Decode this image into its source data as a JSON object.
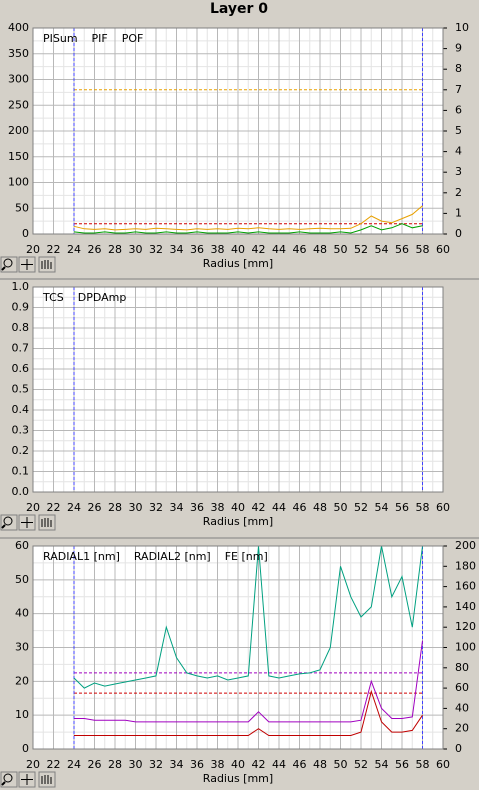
{
  "title": "Layer 0",
  "chart_data": [
    {
      "type": "line",
      "x_label": "Radius [mm]",
      "x": [
        24,
        25,
        26,
        27,
        28,
        29,
        30,
        31,
        32,
        33,
        34,
        35,
        36,
        37,
        38,
        39,
        40,
        41,
        42,
        43,
        44,
        45,
        46,
        47,
        48,
        49,
        50,
        51,
        52,
        53,
        54,
        55,
        56,
        57,
        58
      ],
      "xlim": [
        20,
        60
      ],
      "xticks": [
        20,
        22,
        24,
        26,
        28,
        30,
        32,
        34,
        36,
        38,
        40,
        42,
        44,
        46,
        48,
        50,
        52,
        54,
        56,
        58,
        60
      ],
      "ylim": [
        0,
        400
      ],
      "yticks": [
        0,
        50,
        100,
        150,
        200,
        250,
        300,
        350,
        400
      ],
      "y2lim": [
        0,
        10
      ],
      "y2ticks": [
        0,
        1,
        2,
        3,
        4,
        5,
        6,
        7,
        8,
        9,
        10
      ],
      "grid": true,
      "vlines": [
        24,
        58
      ],
      "vline_color": "#4040ff",
      "hlines": [
        {
          "value": 280,
          "color": "#e8a000"
        },
        {
          "value": 20,
          "color": "#d00000"
        }
      ],
      "series": [
        {
          "name": "PISum",
          "color": "#e8a000",
          "values": [
            15,
            10,
            9,
            10,
            8,
            9,
            10,
            9,
            11,
            10,
            9,
            8,
            10,
            9,
            10,
            9,
            11,
            10,
            12,
            10,
            9,
            10,
            9,
            10,
            11,
            10,
            10,
            11,
            20,
            35,
            25,
            22,
            30,
            38,
            55
          ]
        },
        {
          "name": "PIF",
          "color": "#00a000",
          "axis": "y2",
          "values": [
            0.1,
            0.05,
            0.05,
            0.1,
            0.05,
            0.05,
            0.1,
            0.05,
            0.05,
            0.1,
            0.05,
            0.05,
            0.1,
            0.05,
            0.05,
            0.05,
            0.1,
            0.05,
            0.1,
            0.05,
            0.05,
            0.05,
            0.1,
            0.05,
            0.05,
            0.05,
            0.1,
            0.05,
            0.2,
            0.4,
            0.2,
            0.3,
            0.5,
            0.3,
            0.4
          ]
        },
        {
          "name": "POF",
          "color": "#c00000",
          "axis": "y2",
          "values": [
            0,
            0,
            0,
            0,
            0,
            0,
            0,
            0,
            0,
            0,
            0,
            0,
            0,
            0,
            0,
            0,
            0,
            0,
            0,
            0,
            0,
            0,
            0,
            0,
            0,
            0,
            0,
            0,
            0,
            0,
            0,
            0,
            0,
            0,
            0
          ]
        }
      ]
    },
    {
      "type": "line",
      "x_label": "Radius [mm]",
      "xlim": [
        20,
        60
      ],
      "xticks": [
        20,
        22,
        24,
        26,
        28,
        30,
        32,
        34,
        36,
        38,
        40,
        42,
        44,
        46,
        48,
        50,
        52,
        54,
        56,
        58,
        60
      ],
      "ylim": [
        0,
        1
      ],
      "yticks": [
        {
          "value": 0,
          "label": "0.0"
        },
        0.1,
        0.2,
        0.3,
        0.4,
        0.5,
        0.6,
        0.7,
        0.8,
        0.9,
        {
          "value": 1,
          "label": "1.0"
        }
      ],
      "grid": true,
      "vlines": [
        24,
        58
      ],
      "vline_color": "#4040ff",
      "series": [
        {
          "name": "TCS",
          "color": "#006000"
        },
        {
          "name": "DPDAmp",
          "color": "#c00000"
        }
      ]
    },
    {
      "type": "line",
      "x_label": "Radius [mm]",
      "x": [
        24,
        25,
        26,
        27,
        28,
        29,
        30,
        31,
        32,
        33,
        34,
        35,
        36,
        37,
        38,
        39,
        40,
        41,
        42,
        43,
        44,
        45,
        46,
        47,
        48,
        49,
        50,
        51,
        52,
        53,
        54,
        55,
        56,
        57,
        58
      ],
      "xlim": [
        20,
        60
      ],
      "xticks": [
        20,
        22,
        24,
        26,
        28,
        30,
        32,
        34,
        36,
        38,
        40,
        42,
        44,
        46,
        48,
        50,
        52,
        54,
        56,
        58,
        60
      ],
      "ylim": [
        0,
        60
      ],
      "yticks": [
        0,
        10,
        20,
        30,
        40,
        50,
        60
      ],
      "y2lim": [
        0,
        200
      ],
      "y2ticks": [
        0,
        20,
        40,
        60,
        80,
        100,
        120,
        140,
        160,
        180,
        200
      ],
      "grid": true,
      "vlines": [
        24,
        58
      ],
      "vline_color": "#4040ff",
      "hlines": [
        {
          "value": 22.5,
          "color": "#a000c0"
        },
        {
          "value": 16.5,
          "color": "#d00000"
        }
      ],
      "series": [
        {
          "name": "RADIAL1 [nm]",
          "color": "#a000c0",
          "values": [
            9,
            9,
            8.5,
            8.5,
            8.5,
            8.5,
            8,
            8,
            8,
            8,
            8,
            8,
            8,
            8,
            8,
            8,
            8,
            8,
            11,
            8,
            8,
            8,
            8,
            8,
            8,
            8,
            8,
            8,
            8.5,
            20,
            12,
            9,
            9,
            9.5,
            32
          ]
        },
        {
          "name": "RADIAL2 [nm]",
          "color": "#c00000",
          "values": [
            4,
            4,
            4,
            4,
            4,
            4,
            4,
            4,
            4,
            4,
            4,
            4,
            4,
            4,
            4,
            4,
            4,
            4,
            6,
            4,
            4,
            4,
            4,
            4,
            4,
            4,
            4,
            4,
            5,
            17,
            8,
            5,
            5,
            5.5,
            10
          ]
        },
        {
          "name": "FE [nm]",
          "color": "#00a080",
          "axis": "y2",
          "values": [
            70,
            60,
            65,
            62,
            64,
            66,
            68,
            70,
            72,
            120,
            90,
            75,
            72,
            70,
            72,
            68,
            70,
            72,
            200,
            72,
            70,
            72,
            74,
            75,
            78,
            100,
            180,
            150,
            130,
            140,
            200,
            150,
            170,
            120,
            200
          ]
        }
      ]
    }
  ]
}
